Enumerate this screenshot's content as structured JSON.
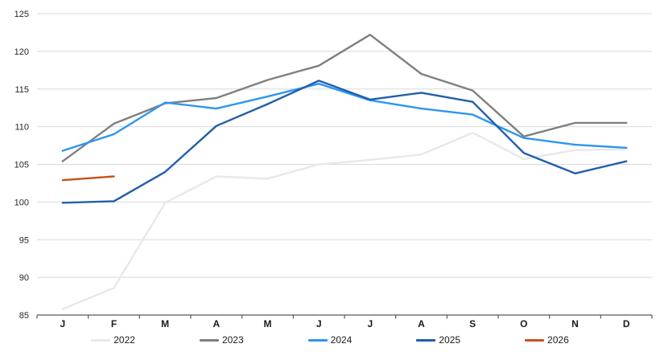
{
  "chart_data": {
    "type": "line",
    "title": "",
    "categories": [
      "J",
      "F",
      "M",
      "A",
      "M",
      "J",
      "J",
      "A",
      "S",
      "O",
      "N",
      "D"
    ],
    "series": [
      {
        "name": "2022",
        "color": "#E8E8E8",
        "values": [
          85.8,
          88.6,
          99.9,
          103.4,
          103.1,
          105.0,
          105.6,
          106.3,
          109.2,
          105.7,
          106.9,
          107.0
        ]
      },
      {
        "name": "2023",
        "color": "#7F7F7F",
        "values": [
          105.4,
          110.4,
          113.1,
          113.8,
          116.2,
          118.1,
          122.2,
          117.0,
          114.8,
          108.7,
          110.5,
          110.5
        ]
      },
      {
        "name": "2024",
        "color": "#2E96F0",
        "values": [
          106.8,
          109.0,
          113.2,
          112.4,
          114.0,
          115.7,
          113.5,
          112.4,
          111.6,
          108.5,
          107.6,
          107.2
        ]
      },
      {
        "name": "2025",
        "color": "#215FAC",
        "values": [
          99.9,
          100.1,
          104.0,
          110.1,
          113.0,
          116.1,
          113.6,
          114.5,
          113.3,
          106.5,
          103.8,
          105.4
        ]
      },
      {
        "name": "2026",
        "color": "#C9521C",
        "values": [
          102.9,
          103.4
        ]
      }
    ],
    "xlabel": "",
    "ylabel": "",
    "ylim": [
      85,
      125
    ],
    "yticks": [
      85,
      90,
      95,
      100,
      105,
      110,
      115,
      120,
      125
    ],
    "grid": "horizontal",
    "legend_position": "bottom"
  },
  "colors": {
    "gridline": "#D9D9D9",
    "axis": "#595959",
    "tick_text": "#262626"
  }
}
